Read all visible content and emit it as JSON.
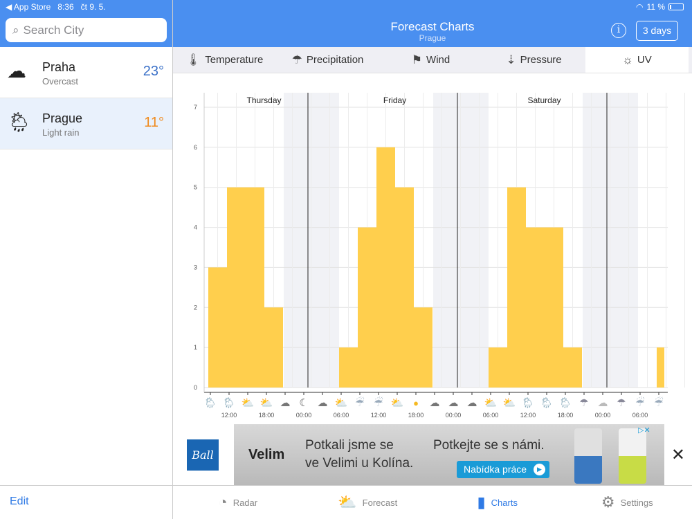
{
  "status": {
    "back": "◀ App Store",
    "time": "8:36",
    "date": "čt 9. 5.",
    "battery": "11 %"
  },
  "sidebar": {
    "search_placeholder": "Search City",
    "cities": [
      {
        "name": "Praha",
        "desc": "Overcast",
        "temp": "23°",
        "icon": "overcast-icon",
        "color": "#3a70c8"
      },
      {
        "name": "Prague",
        "desc": "Light rain",
        "temp": "11°",
        "icon": "rain-sun-icon",
        "color": "#f08a1c"
      }
    ],
    "edit": "Edit"
  },
  "header": {
    "title": "Forecast Charts",
    "subtitle": "Prague",
    "range": "3 days",
    "info": "i"
  },
  "tabs": [
    {
      "label": "Temperature",
      "icon": "🌡"
    },
    {
      "label": "Precipitation",
      "icon": "☂"
    },
    {
      "label": "Wind",
      "icon": "⚑"
    },
    {
      "label": "Pressure",
      "icon": "⇣"
    },
    {
      "label": "UV",
      "icon": "☼"
    }
  ],
  "chart_data": {
    "type": "bar",
    "title": "UV",
    "ylim": [
      0,
      7
    ],
    "yticks": [
      0,
      1,
      2,
      3,
      4,
      5,
      6,
      7
    ],
    "days": [
      {
        "label": "Thursday",
        "slot": 2.5
      },
      {
        "label": "Friday",
        "slot": 9.5
      },
      {
        "label": "Saturday",
        "slot": 17.5
      }
    ],
    "midnights": [
      5,
      13,
      21
    ],
    "night_ranges": [
      [
        4,
        7
      ],
      [
        12,
        15
      ],
      [
        20,
        23
      ]
    ],
    "xticks": [
      {
        "label": "12:00",
        "slot": 1
      },
      {
        "label": "18:00",
        "slot": 3
      },
      {
        "label": "00:00",
        "slot": 5
      },
      {
        "label": "06:00",
        "slot": 7
      },
      {
        "label": "12:00",
        "slot": 9
      },
      {
        "label": "18:00",
        "slot": 11
      },
      {
        "label": "00:00",
        "slot": 13
      },
      {
        "label": "06:00",
        "slot": 15
      },
      {
        "label": "12:00",
        "slot": 17
      },
      {
        "label": "18:00",
        "slot": 19
      },
      {
        "label": "00:00",
        "slot": 21
      },
      {
        "label": "06:00",
        "slot": 23
      }
    ],
    "values": [
      3,
      5,
      5,
      2,
      0,
      0,
      0,
      1,
      4,
      6,
      5,
      2,
      0,
      0,
      0,
      1,
      5,
      4,
      4,
      1,
      0,
      0,
      0,
      0,
      1
    ],
    "icons": [
      "rain-sun",
      "rain-sun",
      "partly-sunny",
      "partly-sunny",
      "night-cloudy",
      "night-moon",
      "night-cloudy",
      "partly-sunny",
      "rain",
      "rain",
      "partly-sunny",
      "sun",
      "night-cloudy",
      "night-cloudy",
      "night-cloudy",
      "partly-sunny",
      "partly-sunny",
      "rain-sun",
      "rain-sun",
      "rain-sun",
      "rain-night",
      "overcast",
      "rain-night",
      "rain",
      "rain"
    ],
    "bar_color": "#ffcf4d"
  },
  "ad": {
    "logo": "Ball",
    "brand": "Velim",
    "line1": "Potkali jsme se",
    "line2": "ve Velimi u Kolína.",
    "line3": "Potkejte se s námi.",
    "cta": "Nabídka práce",
    "close": "✕"
  },
  "bottom": [
    {
      "label": "Radar",
      "icon": "◔"
    },
    {
      "label": "Forecast",
      "icon": "⛅"
    },
    {
      "label": "Charts",
      "icon": "▮"
    },
    {
      "label": "Settings",
      "icon": "⚙"
    }
  ]
}
